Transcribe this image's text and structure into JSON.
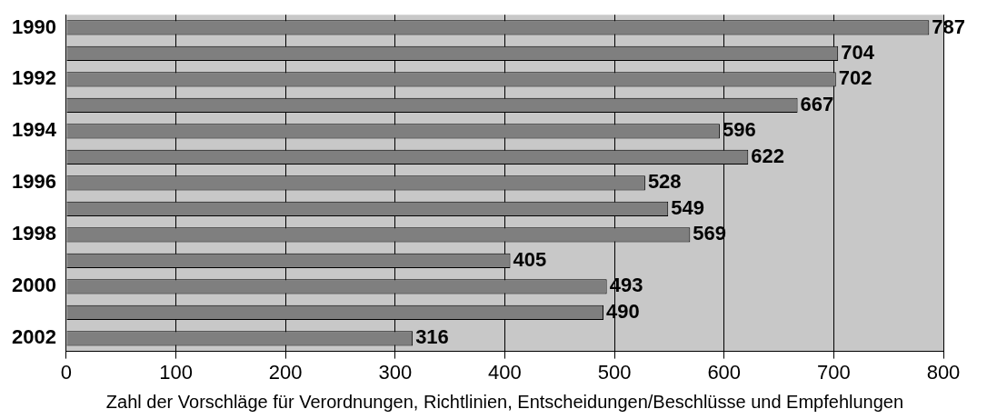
{
  "chart_data": {
    "type": "bar",
    "orientation": "horizontal",
    "xlabel": "Zahl der Vorschläge für Verordnungen, Richtlinien, Entscheidungen/Beschlüsse und Empfehlungen",
    "categories": [
      "1990",
      null,
      "1992",
      null,
      "1994",
      null,
      "1996",
      null,
      "1998",
      null,
      "2000",
      null,
      "2002"
    ],
    "values": [
      787,
      704,
      702,
      667,
      596,
      622,
      528,
      549,
      569,
      405,
      493,
      490,
      316
    ],
    "color": "#7f7f7f",
    "xlim": [
      0,
      800
    ],
    "xticks": [
      0,
      100,
      200,
      300,
      400,
      500,
      600,
      700,
      800
    ],
    "grid": "x",
    "data_labels": true
  }
}
